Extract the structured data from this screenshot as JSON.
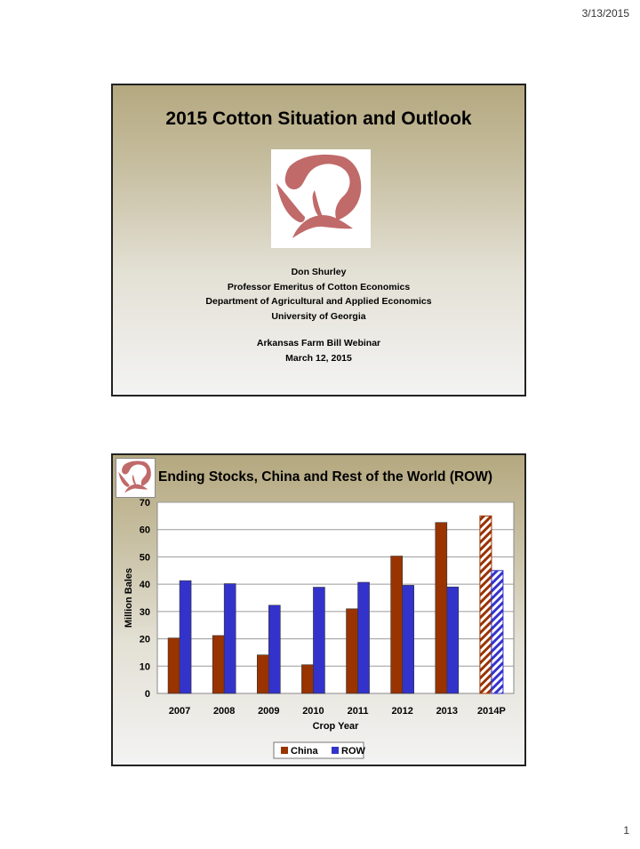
{
  "page": {
    "date": "3/13/2015",
    "number": "1"
  },
  "slide1": {
    "title": "2015 Cotton Situation and Outlook",
    "logo_icon": "cotton-boll-logo",
    "logo_color": "#c06a6a",
    "presenter": "Don Shurley",
    "position": "Professor Emeritus of Cotton Economics",
    "department": "Department of Agricultural and Applied Economics",
    "university": "University of Georgia",
    "event": "Arkansas Farm Bill Webinar",
    "date": "March 12, 2015"
  },
  "slide2": {
    "title": "Ending Stocks, China and Rest of the World (ROW)",
    "logo_icon": "cotton-boll-logo"
  },
  "chart_data": {
    "type": "bar",
    "title": "Ending Stocks, China and Rest of the World (ROW)",
    "xlabel": "Crop Year",
    "ylabel": "Million Bales",
    "ylim": [
      0,
      70
    ],
    "yticks": [
      0,
      10,
      20,
      30,
      40,
      50,
      60,
      70
    ],
    "grid": true,
    "legend": "bottom",
    "categories": [
      "2007",
      "2008",
      "2009",
      "2010",
      "2011",
      "2012",
      "2013",
      "2014P"
    ],
    "series": [
      {
        "name": "China",
        "color": "#993300",
        "values": [
          20.3,
          21.2,
          14.1,
          10.5,
          31.0,
          50.3,
          62.6,
          65.0
        ]
      },
      {
        "name": "ROW",
        "color": "#3333cc",
        "values": [
          41.3,
          40.2,
          32.3,
          38.9,
          40.7,
          39.6,
          39.0,
          45.0
        ]
      }
    ],
    "projected_category": "2014P",
    "projected_style": "hatched"
  }
}
